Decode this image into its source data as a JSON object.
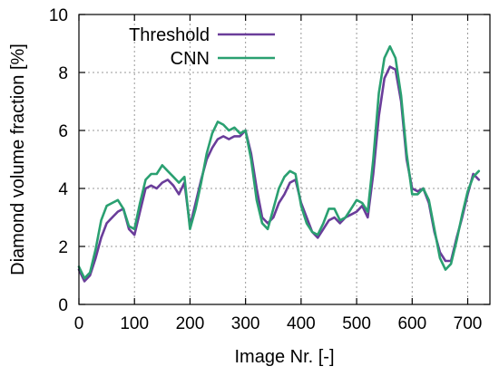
{
  "chart_data": {
    "type": "line",
    "xlabel": "Image Nr. [-]",
    "ylabel": "Diamond volume fraction [%]",
    "xlim": [
      0,
      740
    ],
    "ylim": [
      0,
      10
    ],
    "x_ticks": [
      0,
      100,
      200,
      300,
      400,
      500,
      600,
      700
    ],
    "y_ticks": [
      0,
      2,
      4,
      6,
      8,
      10
    ],
    "grid": true,
    "legend_position": "top-left",
    "series": [
      {
        "name": "Threshold",
        "color": "#6a3d9a",
        "x": [
          0,
          10,
          20,
          30,
          40,
          50,
          60,
          70,
          80,
          90,
          100,
          110,
          120,
          130,
          140,
          150,
          160,
          170,
          180,
          190,
          200,
          210,
          220,
          230,
          240,
          250,
          260,
          270,
          280,
          290,
          300,
          310,
          320,
          330,
          340,
          350,
          360,
          370,
          380,
          390,
          400,
          410,
          420,
          430,
          440,
          450,
          460,
          470,
          480,
          490,
          500,
          510,
          520,
          530,
          540,
          550,
          560,
          570,
          580,
          590,
          600,
          610,
          620,
          630,
          640,
          650,
          660,
          670,
          680,
          690,
          700,
          710,
          720
        ],
        "values": [
          1.2,
          0.8,
          1.0,
          1.6,
          2.3,
          2.8,
          3.0,
          3.2,
          3.3,
          2.6,
          2.4,
          3.2,
          4.0,
          4.1,
          4.0,
          4.2,
          4.3,
          4.1,
          3.8,
          4.2,
          2.7,
          3.5,
          4.3,
          5.0,
          5.4,
          5.7,
          5.8,
          5.7,
          5.8,
          5.8,
          6.0,
          5.2,
          4.0,
          3.0,
          2.8,
          3.0,
          3.5,
          3.8,
          4.2,
          4.3,
          3.5,
          3.0,
          2.5,
          2.3,
          2.6,
          2.9,
          3.0,
          2.8,
          3.0,
          3.1,
          3.2,
          3.4,
          3.0,
          4.5,
          6.5,
          7.8,
          8.2,
          8.1,
          7.0,
          5.0,
          4.0,
          3.9,
          4.0,
          3.5,
          2.5,
          1.8,
          1.5,
          1.5,
          2.3,
          3.0,
          3.8,
          4.5,
          4.3
        ]
      },
      {
        "name": "CNN",
        "color": "#2aa071",
        "x": [
          0,
          10,
          20,
          30,
          40,
          50,
          60,
          70,
          80,
          90,
          100,
          110,
          120,
          130,
          140,
          150,
          160,
          170,
          180,
          190,
          200,
          210,
          220,
          230,
          240,
          250,
          260,
          270,
          280,
          290,
          300,
          310,
          320,
          330,
          340,
          350,
          360,
          370,
          380,
          390,
          400,
          410,
          420,
          430,
          440,
          450,
          460,
          470,
          480,
          490,
          500,
          510,
          520,
          530,
          540,
          550,
          560,
          570,
          580,
          590,
          600,
          610,
          620,
          630,
          640,
          650,
          660,
          670,
          680,
          690,
          700,
          710,
          720
        ],
        "values": [
          1.3,
          0.9,
          1.1,
          1.9,
          2.9,
          3.4,
          3.5,
          3.6,
          3.3,
          2.7,
          2.6,
          3.5,
          4.3,
          4.5,
          4.5,
          4.8,
          4.6,
          4.4,
          4.2,
          4.4,
          2.6,
          3.3,
          4.2,
          5.2,
          5.9,
          6.3,
          6.2,
          6.0,
          6.1,
          5.9,
          6.0,
          5.0,
          3.6,
          2.8,
          2.6,
          3.3,
          4.0,
          4.4,
          4.6,
          4.5,
          3.4,
          2.8,
          2.5,
          2.4,
          2.8,
          3.3,
          3.3,
          2.9,
          3.0,
          3.3,
          3.6,
          3.5,
          3.2,
          5.0,
          7.3,
          8.5,
          8.9,
          8.5,
          7.2,
          5.2,
          3.8,
          3.8,
          4.0,
          3.6,
          2.6,
          1.6,
          1.2,
          1.4,
          2.2,
          3.1,
          3.9,
          4.4,
          4.6
        ]
      }
    ]
  }
}
